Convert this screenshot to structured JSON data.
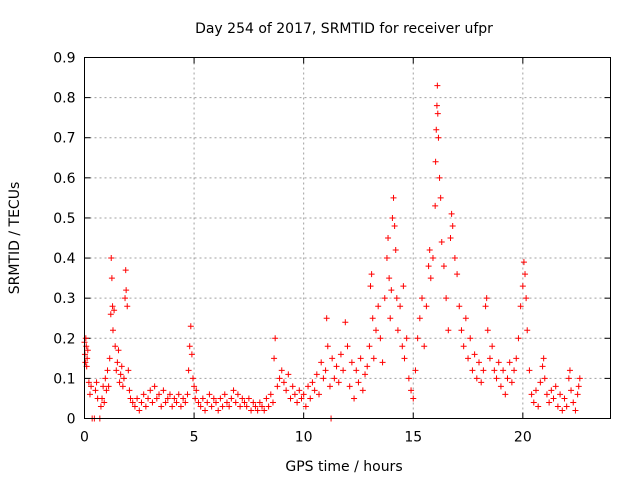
{
  "chart_data": {
    "type": "scatter",
    "title": "Day 254 of 2017, SRMTID for receiver ufpr",
    "xlabel": "GPS time / hours",
    "ylabel": "SRMTID / TECUs",
    "xlim": [
      0,
      24
    ],
    "ylim": [
      0,
      0.9
    ],
    "xticks": [
      0,
      5,
      10,
      15,
      20
    ],
    "yticks": [
      0,
      0.1,
      0.2,
      0.3,
      0.4,
      0.5,
      0.6,
      0.7,
      0.8,
      0.9
    ],
    "xtick_labels": [
      "0",
      "5",
      "10",
      "15",
      "20"
    ],
    "ytick_labels": [
      "0",
      "0.1",
      "0.2",
      "0.3",
      "0.4",
      "0.5",
      "0.6",
      "0.7",
      "0.8",
      "0.9"
    ],
    "marker": "+",
    "grid": true,
    "series": [
      {
        "name": "SRMTID",
        "color": "#ff0000",
        "points": [
          [
            0.0,
            0.19
          ],
          [
            0.02,
            0.16
          ],
          [
            0.04,
            0.14
          ],
          [
            0.06,
            0.2
          ],
          [
            0.08,
            0.18
          ],
          [
            0.1,
            0.13
          ],
          [
            0.12,
            0.15
          ],
          [
            0.15,
            0.17
          ],
          [
            0.2,
            0.09
          ],
          [
            0.25,
            0.06
          ],
          [
            0.3,
            0.08
          ],
          [
            0.35,
            0.0
          ],
          [
            0.45,
            0.0
          ],
          [
            0.5,
            0.07
          ],
          [
            0.55,
            0.09
          ],
          [
            0.6,
            0.05
          ],
          [
            0.7,
            0.0
          ],
          [
            0.75,
            0.03
          ],
          [
            0.8,
            0.05
          ],
          [
            0.85,
            0.08
          ],
          [
            0.9,
            0.04
          ],
          [
            0.95,
            0.1
          ],
          [
            1.0,
            0.07
          ],
          [
            1.05,
            0.12
          ],
          [
            1.1,
            0.08
          ],
          [
            1.15,
            0.15
          ],
          [
            1.2,
            0.26
          ],
          [
            1.22,
            0.4
          ],
          [
            1.25,
            0.35
          ],
          [
            1.28,
            0.28
          ],
          [
            1.3,
            0.22
          ],
          [
            1.35,
            0.27
          ],
          [
            1.4,
            0.18
          ],
          [
            1.45,
            0.12
          ],
          [
            1.5,
            0.14
          ],
          [
            1.55,
            0.17
          ],
          [
            1.6,
            0.09
          ],
          [
            1.65,
            0.11
          ],
          [
            1.7,
            0.13
          ],
          [
            1.75,
            0.08
          ],
          [
            1.8,
            0.1
          ],
          [
            1.85,
            0.3
          ],
          [
            1.88,
            0.37
          ],
          [
            1.9,
            0.32
          ],
          [
            1.95,
            0.28
          ],
          [
            2.0,
            0.12
          ],
          [
            2.05,
            0.07
          ],
          [
            2.1,
            0.05
          ],
          [
            2.2,
            0.04
          ],
          [
            2.3,
            0.03
          ],
          [
            2.4,
            0.05
          ],
          [
            2.5,
            0.02
          ],
          [
            2.6,
            0.04
          ],
          [
            2.7,
            0.06
          ],
          [
            2.8,
            0.03
          ],
          [
            2.9,
            0.05
          ],
          [
            3.0,
            0.07
          ],
          [
            3.1,
            0.04
          ],
          [
            3.2,
            0.08
          ],
          [
            3.3,
            0.05
          ],
          [
            3.4,
            0.06
          ],
          [
            3.5,
            0.03
          ],
          [
            3.6,
            0.07
          ],
          [
            3.7,
            0.04
          ],
          [
            3.8,
            0.05
          ],
          [
            3.9,
            0.06
          ],
          [
            4.0,
            0.03
          ],
          [
            4.1,
            0.05
          ],
          [
            4.2,
            0.04
          ],
          [
            4.3,
            0.06
          ],
          [
            4.4,
            0.03
          ],
          [
            4.5,
            0.05
          ],
          [
            4.6,
            0.04
          ],
          [
            4.7,
            0.06
          ],
          [
            4.75,
            0.12
          ],
          [
            4.8,
            0.18
          ],
          [
            4.85,
            0.23
          ],
          [
            4.9,
            0.16
          ],
          [
            4.95,
            0.1
          ],
          [
            5.0,
            0.08
          ],
          [
            5.05,
            0.05
          ],
          [
            5.1,
            0.07
          ],
          [
            5.2,
            0.04
          ],
          [
            5.3,
            0.03
          ],
          [
            5.4,
            0.05
          ],
          [
            5.5,
            0.02
          ],
          [
            5.6,
            0.04
          ],
          [
            5.7,
            0.06
          ],
          [
            5.8,
            0.03
          ],
          [
            5.9,
            0.05
          ],
          [
            6.0,
            0.04
          ],
          [
            6.1,
            0.02
          ],
          [
            6.2,
            0.05
          ],
          [
            6.3,
            0.03
          ],
          [
            6.4,
            0.06
          ],
          [
            6.5,
            0.04
          ],
          [
            6.6,
            0.03
          ],
          [
            6.7,
            0.05
          ],
          [
            6.8,
            0.07
          ],
          [
            6.9,
            0.04
          ],
          [
            7.0,
            0.06
          ],
          [
            7.1,
            0.03
          ],
          [
            7.2,
            0.05
          ],
          [
            7.3,
            0.04
          ],
          [
            7.4,
            0.03
          ],
          [
            7.5,
            0.05
          ],
          [
            7.6,
            0.02
          ],
          [
            7.7,
            0.04
          ],
          [
            7.8,
            0.03
          ],
          [
            7.9,
            0.02
          ],
          [
            8.0,
            0.04
          ],
          [
            8.1,
            0.03
          ],
          [
            8.2,
            0.02
          ],
          [
            8.3,
            0.05
          ],
          [
            8.4,
            0.03
          ],
          [
            8.5,
            0.06
          ],
          [
            8.6,
            0.04
          ],
          [
            8.65,
            0.15
          ],
          [
            8.7,
            0.2
          ],
          [
            8.8,
            0.08
          ],
          [
            8.9,
            0.1
          ],
          [
            9.0,
            0.12
          ],
          [
            9.1,
            0.09
          ],
          [
            9.2,
            0.07
          ],
          [
            9.3,
            0.11
          ],
          [
            9.4,
            0.05
          ],
          [
            9.5,
            0.08
          ],
          [
            9.6,
            0.06
          ],
          [
            9.7,
            0.04
          ],
          [
            9.8,
            0.07
          ],
          [
            9.9,
            0.05
          ],
          [
            10.0,
            0.06
          ],
          [
            10.1,
            0.03
          ],
          [
            10.2,
            0.08
          ],
          [
            10.3,
            0.05
          ],
          [
            10.4,
            0.09
          ],
          [
            10.5,
            0.07
          ],
          [
            10.6,
            0.11
          ],
          [
            10.7,
            0.06
          ],
          [
            10.8,
            0.14
          ],
          [
            10.9,
            0.1
          ],
          [
            11.0,
            0.12
          ],
          [
            11.05,
            0.25
          ],
          [
            11.1,
            0.18
          ],
          [
            11.2,
            0.08
          ],
          [
            11.25,
            0.0
          ],
          [
            11.3,
            0.15
          ],
          [
            11.4,
            0.1
          ],
          [
            11.5,
            0.13
          ],
          [
            11.6,
            0.09
          ],
          [
            11.7,
            0.16
          ],
          [
            11.8,
            0.12
          ],
          [
            11.9,
            0.24
          ],
          [
            12.0,
            0.18
          ],
          [
            12.1,
            0.08
          ],
          [
            12.2,
            0.14
          ],
          [
            12.3,
            0.05
          ],
          [
            12.4,
            0.12
          ],
          [
            12.5,
            0.09
          ],
          [
            12.6,
            0.15
          ],
          [
            12.7,
            0.07
          ],
          [
            12.8,
            0.11
          ],
          [
            12.9,
            0.13
          ],
          [
            13.0,
            0.18
          ],
          [
            13.05,
            0.33
          ],
          [
            13.1,
            0.36
          ],
          [
            13.15,
            0.25
          ],
          [
            13.2,
            0.15
          ],
          [
            13.3,
            0.22
          ],
          [
            13.4,
            0.28
          ],
          [
            13.5,
            0.2
          ],
          [
            13.6,
            0.14
          ],
          [
            13.7,
            0.3
          ],
          [
            13.8,
            0.4
          ],
          [
            13.85,
            0.45
          ],
          [
            13.9,
            0.35
          ],
          [
            13.95,
            0.25
          ],
          [
            14.0,
            0.32
          ],
          [
            14.05,
            0.5
          ],
          [
            14.1,
            0.55
          ],
          [
            14.15,
            0.48
          ],
          [
            14.2,
            0.42
          ],
          [
            14.25,
            0.3
          ],
          [
            14.3,
            0.22
          ],
          [
            14.4,
            0.28
          ],
          [
            14.5,
            0.18
          ],
          [
            14.55,
            0.33
          ],
          [
            14.6,
            0.15
          ],
          [
            14.7,
            0.2
          ],
          [
            14.8,
            0.1
          ],
          [
            14.9,
            0.07
          ],
          [
            15.0,
            0.05
          ],
          [
            15.1,
            0.12
          ],
          [
            15.2,
            0.2
          ],
          [
            15.3,
            0.25
          ],
          [
            15.4,
            0.3
          ],
          [
            15.5,
            0.18
          ],
          [
            15.6,
            0.28
          ],
          [
            15.7,
            0.38
          ],
          [
            15.75,
            0.42
          ],
          [
            15.8,
            0.35
          ],
          [
            15.9,
            0.4
          ],
          [
            16.0,
            0.53
          ],
          [
            16.02,
            0.64
          ],
          [
            16.05,
            0.72
          ],
          [
            16.08,
            0.78
          ],
          [
            16.1,
            0.83
          ],
          [
            16.12,
            0.76
          ],
          [
            16.15,
            0.7
          ],
          [
            16.2,
            0.6
          ],
          [
            16.25,
            0.55
          ],
          [
            16.3,
            0.44
          ],
          [
            16.4,
            0.38
          ],
          [
            16.5,
            0.3
          ],
          [
            16.6,
            0.22
          ],
          [
            16.7,
            0.45
          ],
          [
            16.75,
            0.51
          ],
          [
            16.8,
            0.48
          ],
          [
            16.9,
            0.4
          ],
          [
            17.0,
            0.36
          ],
          [
            17.1,
            0.28
          ],
          [
            17.2,
            0.22
          ],
          [
            17.3,
            0.18
          ],
          [
            17.4,
            0.25
          ],
          [
            17.5,
            0.15
          ],
          [
            17.6,
            0.2
          ],
          [
            17.7,
            0.12
          ],
          [
            17.8,
            0.16
          ],
          [
            17.9,
            0.1
          ],
          [
            18.0,
            0.14
          ],
          [
            18.1,
            0.09
          ],
          [
            18.2,
            0.12
          ],
          [
            18.3,
            0.28
          ],
          [
            18.35,
            0.3
          ],
          [
            18.4,
            0.22
          ],
          [
            18.5,
            0.15
          ],
          [
            18.6,
            0.18
          ],
          [
            18.7,
            0.12
          ],
          [
            18.8,
            0.1
          ],
          [
            18.9,
            0.14
          ],
          [
            19.0,
            0.08
          ],
          [
            19.1,
            0.12
          ],
          [
            19.2,
            0.06
          ],
          [
            19.3,
            0.1
          ],
          [
            19.4,
            0.14
          ],
          [
            19.5,
            0.09
          ],
          [
            19.6,
            0.12
          ],
          [
            19.7,
            0.15
          ],
          [
            19.8,
            0.2
          ],
          [
            19.9,
            0.28
          ],
          [
            20.0,
            0.33
          ],
          [
            20.05,
            0.39
          ],
          [
            20.1,
            0.36
          ],
          [
            20.15,
            0.3
          ],
          [
            20.2,
            0.22
          ],
          [
            20.3,
            0.12
          ],
          [
            20.4,
            0.06
          ],
          [
            20.5,
            0.04
          ],
          [
            20.6,
            0.07
          ],
          [
            20.7,
            0.03
          ],
          [
            20.8,
            0.09
          ],
          [
            20.9,
            0.13
          ],
          [
            20.95,
            0.15
          ],
          [
            21.0,
            0.1
          ],
          [
            21.1,
            0.06
          ],
          [
            21.2,
            0.04
          ],
          [
            21.3,
            0.07
          ],
          [
            21.4,
            0.05
          ],
          [
            21.5,
            0.08
          ],
          [
            21.6,
            0.03
          ],
          [
            21.7,
            0.06
          ],
          [
            21.8,
            0.02
          ],
          [
            21.9,
            0.05
          ],
          [
            22.0,
            0.03
          ],
          [
            22.1,
            0.1
          ],
          [
            22.15,
            0.12
          ],
          [
            22.2,
            0.07
          ],
          [
            22.3,
            0.04
          ],
          [
            22.4,
            0.02
          ],
          [
            22.5,
            0.06
          ],
          [
            22.55,
            0.08
          ],
          [
            22.6,
            0.1
          ]
        ]
      }
    ]
  }
}
